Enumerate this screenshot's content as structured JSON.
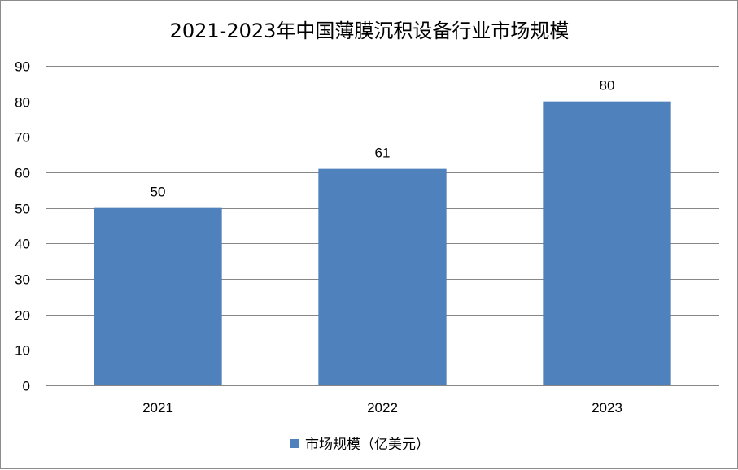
{
  "chart_data": {
    "type": "bar",
    "title": "2021-2023年中国薄膜沉积设备行业市场规模",
    "categories": [
      "2021",
      "2022",
      "2023"
    ],
    "series": [
      {
        "name": "市场规模（亿美元）",
        "values": [
          50,
          61,
          80
        ],
        "color": "#4f81bd"
      }
    ],
    "ylim": [
      0,
      90
    ],
    "yticks": [
      0,
      10,
      20,
      30,
      40,
      50,
      60,
      70,
      80,
      90
    ],
    "grid": true,
    "legend_position": "bottom",
    "data_labels": true,
    "gridline_color": "#878787"
  }
}
